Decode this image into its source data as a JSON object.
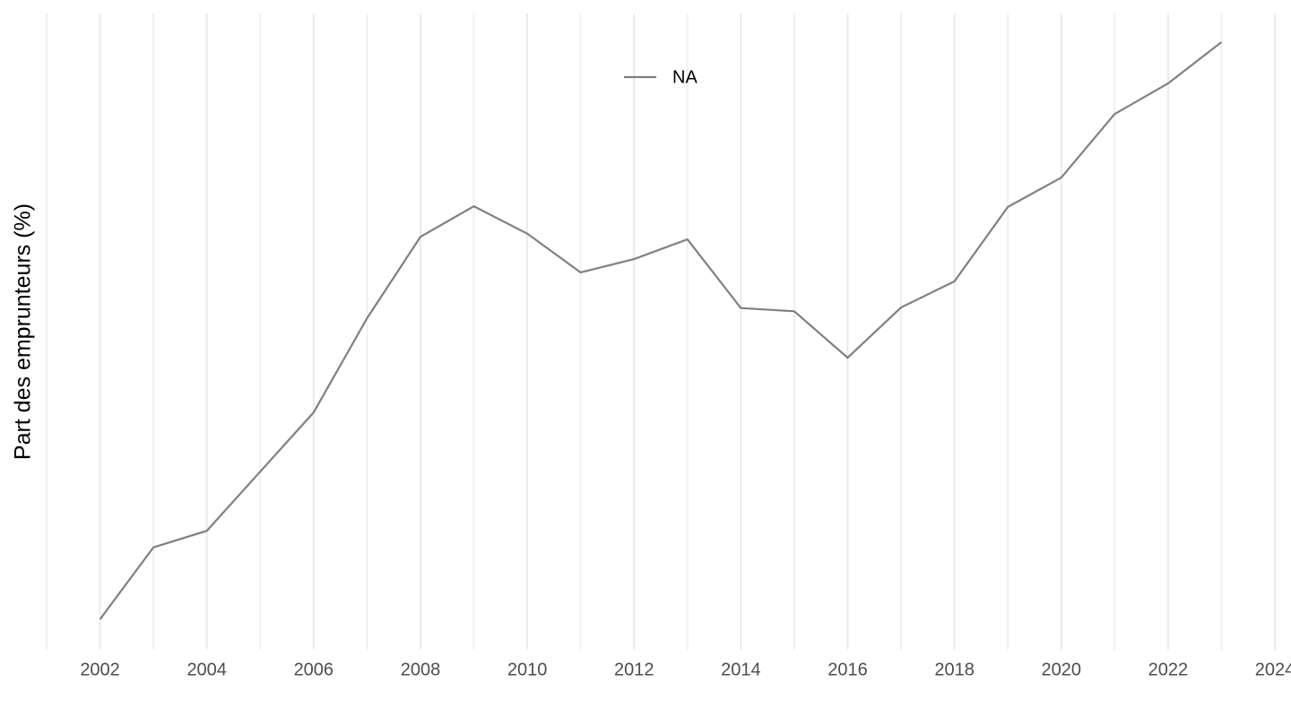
{
  "chart_data": {
    "type": "line",
    "y_label": "Part des emprunteurs (%)",
    "x": [
      2002,
      2003,
      2004,
      2005,
      2006,
      2007,
      2008,
      2009,
      2010,
      2011,
      2012,
      2013,
      2014,
      2015,
      2016,
      2017,
      2018,
      2019,
      2020,
      2021,
      2022,
      2023
    ],
    "series": [
      {
        "name": "NA",
        "color": "#808080",
        "values": [
          4.8,
          16.1,
          18.7,
          28.0,
          37.3,
          52.1,
          64.9,
          69.7,
          65.4,
          59.3,
          61.4,
          64.5,
          53.7,
          53.2,
          45.9,
          53.8,
          57.9,
          69.6,
          74.2,
          84.2,
          89.0,
          95.5
        ]
      }
    ],
    "xlim": [
      2001,
      2024
    ],
    "xticks": [
      2002,
      2004,
      2006,
      2008,
      2010,
      2012,
      2014,
      2016,
      2018,
      2020,
      2022,
      2024
    ],
    "ylim": [
      0,
      100
    ],
    "grid": true,
    "legend": "top"
  }
}
